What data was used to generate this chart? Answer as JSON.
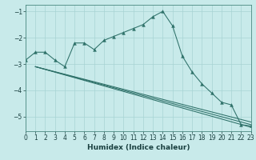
{
  "xlabel": "Humidex (Indice chaleur)",
  "xlim": [
    0,
    23
  ],
  "ylim": [
    -5.55,
    -0.75
  ],
  "yticks": [
    -5,
    -4,
    -3,
    -2,
    -1
  ],
  "xticks": [
    0,
    1,
    2,
    3,
    4,
    5,
    6,
    7,
    8,
    9,
    10,
    11,
    12,
    13,
    14,
    15,
    16,
    17,
    18,
    19,
    20,
    21,
    22,
    23
  ],
  "bg_color": "#c8eaea",
  "line_color": "#2d7068",
  "grid_color": "#a8d4d4",
  "main_x": [
    0,
    1,
    2,
    3,
    4,
    5,
    6,
    7,
    8,
    9,
    10,
    11,
    12,
    13,
    14,
    15,
    16,
    17,
    18,
    19,
    20,
    21,
    22,
    23
  ],
  "main_y": [
    -2.85,
    -2.55,
    -2.55,
    -2.85,
    -3.1,
    -2.2,
    -2.2,
    -2.45,
    -2.1,
    -1.95,
    -1.8,
    -1.65,
    -1.5,
    -1.2,
    -1.0,
    -1.55,
    -2.7,
    -3.3,
    -3.75,
    -4.1,
    -4.45,
    -4.55,
    -5.3,
    -5.35
  ],
  "reg_lines": [
    {
      "x": [
        1,
        23
      ],
      "y": [
        -3.1,
        -5.2
      ]
    },
    {
      "x": [
        1,
        23
      ],
      "y": [
        -3.1,
        -5.3
      ]
    },
    {
      "x": [
        1,
        23
      ],
      "y": [
        -3.1,
        -5.4
      ]
    }
  ]
}
